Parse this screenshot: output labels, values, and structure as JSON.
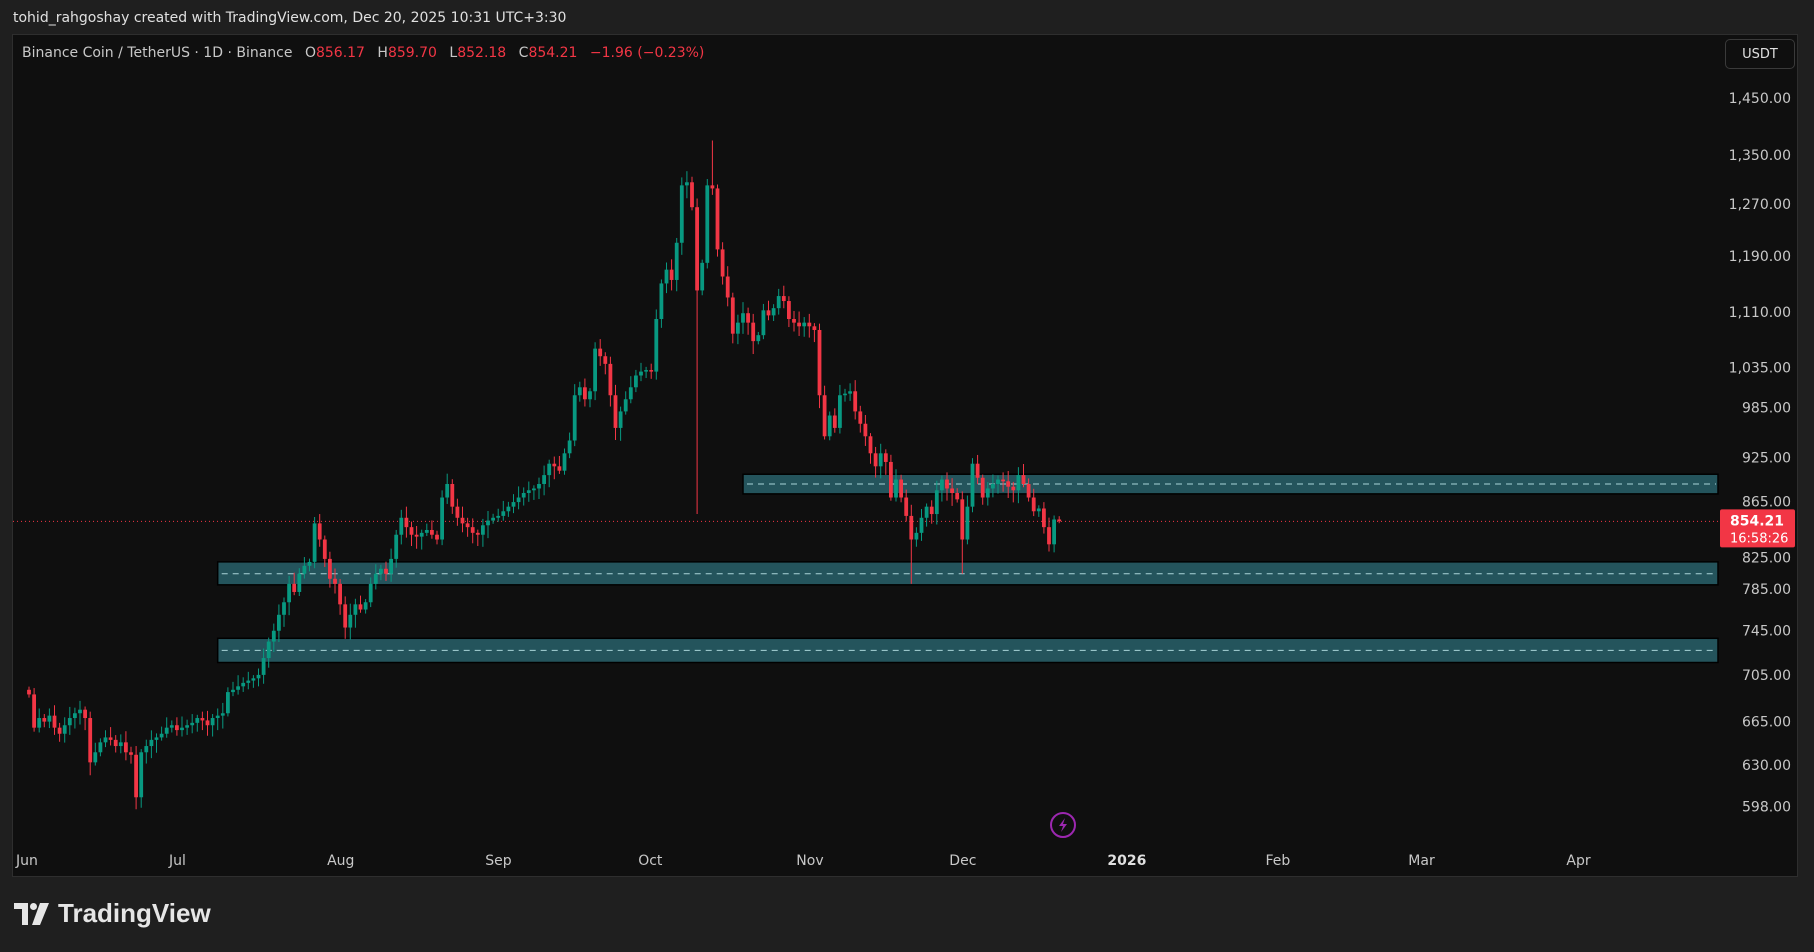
{
  "header": {
    "credit": "tohid_rahgoshay created with TradingView.com, Dec 20, 2025 10:31 UTC+3:30"
  },
  "legend": {
    "symbol": "Binance Coin / TetherUS · 1D · Binance",
    "open_label": "O",
    "open": "856.17",
    "high_label": "H",
    "high": "859.70",
    "low_label": "L",
    "low": "852.18",
    "close_label": "C",
    "close": "854.21",
    "change": "−1.96 (−0.23%)"
  },
  "currency_button": "USDT",
  "footer": {
    "brand": "TradingView"
  },
  "colors": {
    "up": "#089981",
    "down": "#f23645",
    "zone_fill": "#24545c",
    "zone_dash": "#a9d3d8",
    "price_line": "#f23645",
    "alert_icon": "#9c27b0"
  },
  "icons": {
    "alert": "lightning-alert-icon",
    "logo": "tradingview-logo-icon"
  },
  "chart_data": {
    "type": "candlestick",
    "scale": "log",
    "grid": false,
    "ylim": [
      580,
      1480
    ],
    "start_date": "2025-06-01",
    "closes": {
      "Jun": [
        688,
        660,
        668,
        665,
        670,
        660,
        655,
        662,
        668,
        672,
        675,
        668,
        632,
        640,
        648,
        652,
        650,
        645,
        648,
        640,
        638,
        605,
        640,
        645,
        650,
        652,
        655,
        660,
        662,
        658
      ],
      "Jul": [
        660,
        662,
        664,
        668,
        666,
        662,
        668,
        670,
        672,
        690,
        692,
        695,
        698,
        700,
        702,
        705,
        720,
        735,
        745,
        760,
        772,
        790,
        782,
        800,
        808,
        812,
        852,
        835,
        815,
        795,
        790
      ],
      "Aug": [
        770,
        748,
        760,
        770,
        765,
        772,
        790,
        800,
        805,
        800,
        815,
        840,
        858,
        848,
        840,
        838,
        842,
        845,
        840,
        835,
        880,
        895,
        870,
        858,
        852,
        848,
        842,
        840,
        850,
        855,
        858
      ],
      "Sep": [
        860,
        865,
        870,
        875,
        880,
        885,
        888,
        890,
        895,
        905,
        918,
        915,
        910,
        930,
        945,
        1000,
        1010,
        995,
        1005,
        1060,
        1050,
        1040,
        1000,
        960,
        980,
        995,
        1010,
        1025,
        1030,
        1032
      ],
      "Oct": [
        1030,
        1100,
        1150,
        1170,
        1155,
        1210,
        1300,
        1305,
        1265,
        1140,
        1180,
        1300,
        1295,
        1200,
        1160,
        1130,
        1080,
        1095,
        1108,
        1095,
        1070,
        1078,
        1112,
        1105,
        1115,
        1132,
        1125,
        1100,
        1095,
        1090,
        1095
      ],
      "Nov": [
        1090,
        1085,
        1000,
        950,
        975,
        960,
        1000,
        1002,
        1005,
        980,
        965,
        950,
        930,
        915,
        930,
        920,
        880,
        900,
        880,
        860,
        835,
        842,
        858,
        870,
        862,
        888,
        900,
        890,
        885,
        878
      ],
      "Dec": [
        835,
        870,
        918,
        902,
        880,
        890,
        895,
        900,
        898,
        892,
        888,
        905,
        895,
        880,
        865,
        868,
        848,
        830,
        856.17,
        854.21
      ]
    },
    "notable_wicks": [
      {
        "date": "2025-06-22",
        "low": 596
      },
      {
        "date": "2025-07-28",
        "high": 862
      },
      {
        "date": "2025-10-10",
        "low": 862
      },
      {
        "date": "2025-10-13",
        "high": 1375
      },
      {
        "date": "2025-11-21",
        "low": 790
      },
      {
        "date": "2025-12-01",
        "low": 800
      },
      {
        "date": "2025-12-20",
        "high": 859.7,
        "low": 852.18
      }
    ],
    "last_price": {
      "value": "854.21",
      "countdown": "16:58:26"
    },
    "zones": [
      {
        "from": "2025-10-19",
        "top": 906,
        "bottom": 884,
        "mid": 895
      },
      {
        "from": "2025-07-08",
        "top": 812,
        "bottom": 789,
        "mid": 800
      },
      {
        "from": "2025-07-08",
        "top": 738,
        "bottom": 716,
        "mid": 727
      }
    ],
    "y_ticks": [
      "1,450.00",
      "1,350.00",
      "1,270.00",
      "1,190.00",
      "1,110.00",
      "1,035.00",
      "985.00",
      "925.00",
      "865.00",
      "825.00",
      "785.00",
      "745.00",
      "705.00",
      "665.00",
      "630.00",
      "598.00"
    ],
    "x_ticks": [
      {
        "label": "Jun",
        "date": "2025-06-01"
      },
      {
        "label": "Jul",
        "date": "2025-07-01"
      },
      {
        "label": "Aug",
        "date": "2025-08-01"
      },
      {
        "label": "Sep",
        "date": "2025-09-01"
      },
      {
        "label": "Oct",
        "date": "2025-10-01"
      },
      {
        "label": "Nov",
        "date": "2025-11-01"
      },
      {
        "label": "Dec",
        "date": "2025-12-01"
      },
      {
        "label": "2026",
        "date": "2026-01-01",
        "bold": true
      },
      {
        "label": "Feb",
        "date": "2026-02-01"
      },
      {
        "label": "Mar",
        "date": "2026-03-01"
      },
      {
        "label": "Apr",
        "date": "2026-04-01"
      }
    ]
  }
}
